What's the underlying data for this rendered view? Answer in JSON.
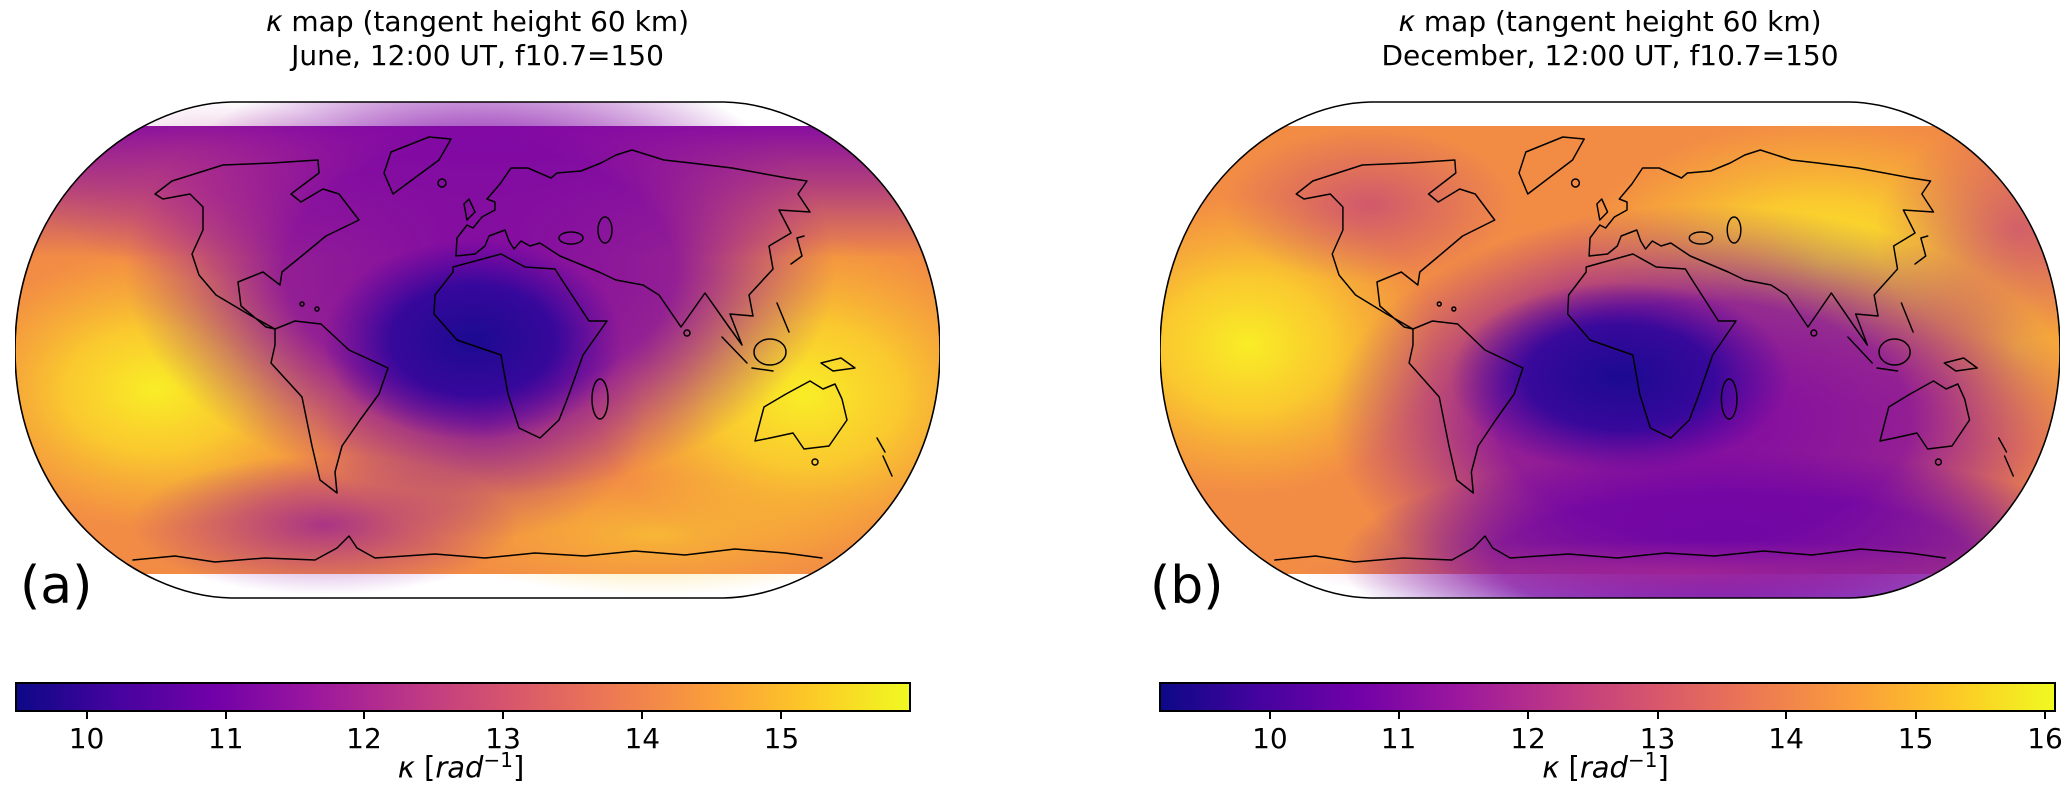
{
  "figure": {
    "background": "#ffffff",
    "colormap": {
      "name": "plasma",
      "stops": [
        "#0d0887",
        "#46039f",
        "#7201a8",
        "#9c179e",
        "#bd3786",
        "#d8576b",
        "#ed7953",
        "#fa9e3b",
        "#fdc926",
        "#f0f921"
      ]
    },
    "panels": [
      {
        "label": "(a)",
        "title_kappa": "κ",
        "title_line1_rest": " map (tangent height 60 km)",
        "title_line2": "June, 12:00 UT, f10.7=150",
        "colorbar": {
          "unit_kappa": "κ",
          "unit_open": " [",
          "unit_rad": "rad",
          "unit_sup": "−1",
          "unit_close": "]",
          "vmin": 9.5,
          "vmax": 15.9,
          "ticks": [
            {
              "value": "10",
              "pct": 7.8
            },
            {
              "value": "11",
              "pct": 23.4
            },
            {
              "value": "12",
              "pct": 38.9
            },
            {
              "value": "13",
              "pct": 54.5
            },
            {
              "value": "14",
              "pct": 70.1
            },
            {
              "value": "15",
              "pct": 85.7
            }
          ]
        }
      },
      {
        "label": "(b)",
        "title_kappa": "κ",
        "title_line1_rest": " map (tangent height 60 km)",
        "title_line2": "December, 12:00 UT, f10.7=150",
        "colorbar": {
          "unit_kappa": "κ",
          "unit_open": " [",
          "unit_rad": "rad",
          "unit_sup": "−1",
          "unit_close": "]",
          "vmin": 9.2,
          "vmax": 16.1,
          "ticks": [
            {
              "value": "10",
              "pct": 12.2
            },
            {
              "value": "11",
              "pct": 26.6
            },
            {
              "value": "12",
              "pct": 41.1
            },
            {
              "value": "13",
              "pct": 55.6
            },
            {
              "value": "14",
              "pct": 70.0
            },
            {
              "value": "15",
              "pct": 84.5
            },
            {
              "value": "16",
              "pct": 99.0
            }
          ]
        }
      }
    ]
  },
  "chart_data": [
    {
      "type": "heatmap",
      "title": "κ map (tangent height 60 km)",
      "subtitle": "June, 12:00 UT, f10.7=150",
      "projection": "Robinson world map with coastlines overlay",
      "variable": "κ [rad⁻¹]",
      "colormap": "plasma",
      "colorbar_ticks": [
        10,
        11,
        12,
        13,
        14,
        15
      ],
      "value_range": [
        9.5,
        15.9
      ],
      "legend_position": "bottom horizontal colorbar",
      "features": [
        {
          "description": "global minimum (dark navy) over equatorial Africa near 0–20°E, 0–15°N",
          "value": 9.7
        },
        {
          "description": "broad purple low covering Europe, North Africa, Middle East and the Arctic cap",
          "value": 11.5
        },
        {
          "description": "bright yellow maximum over the central South Pacific near 150–170°W, 0–20°S",
          "value": 15.5
        },
        {
          "description": "bright yellow maximum over Indonesia / northwest Australia near 110–140°E, 5–30°S",
          "value": 15.5
        },
        {
          "description": "secondary purple low south of South America near 90–130°W, 55–65°S",
          "value": 12.5
        },
        {
          "description": "orange background at remaining mid-latitudes and along Antarctica",
          "value": 14.0
        }
      ]
    },
    {
      "type": "heatmap",
      "title": "κ map (tangent height 60 km)",
      "subtitle": "December, 12:00 UT, f10.7=150",
      "projection": "Robinson world map with coastlines overlay",
      "variable": "κ [rad⁻¹]",
      "colormap": "plasma",
      "colorbar_ticks": [
        10,
        11,
        12,
        13,
        14,
        15,
        16
      ],
      "value_range": [
        9.2,
        16.1
      ],
      "legend_position": "bottom horizontal colorbar",
      "features": [
        {
          "description": "global minimum (dark navy) over the South Atlantic and equatorial Africa near 10°W–20°E, 0–20°S",
          "value": 9.5
        },
        {
          "description": "broad purple low covering southern-hemisphere mid/high latitudes and Antarctica",
          "value": 11.0
        },
        {
          "description": "bright yellow maximum over Siberia / central-east Asia near 80–130°E, 40–65°N",
          "value": 15.8
        },
        {
          "description": "bright yellow maximum over the central Pacific near 160–180°W, 5–25°S",
          "value": 15.5
        },
        {
          "description": "magenta patches over northwest Canada and the Bering Sea / Kamchatka corner",
          "value": 12.5
        },
        {
          "description": "orange background over most of the northern hemisphere",
          "value": 14.0
        }
      ]
    }
  ]
}
